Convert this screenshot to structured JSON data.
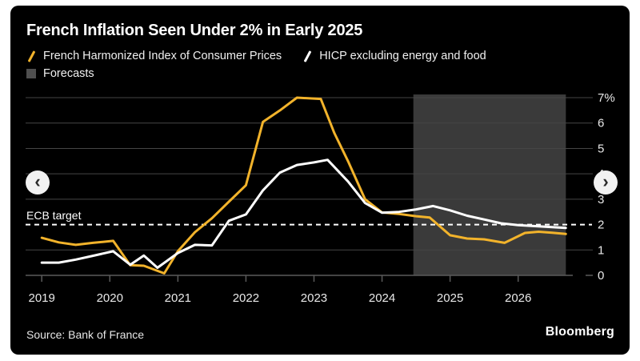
{
  "header": {
    "title": "French Inflation Seen Under 2% in Early 2025"
  },
  "legend": {
    "series1_label": "French Harmonized Index of Consumer Prices",
    "series2_label": "HICP excluding energy and food",
    "forecast_label": "Forecasts"
  },
  "annotations": {
    "ecb_target": "ECB target"
  },
  "nav": {
    "prev_icon": "‹",
    "next_icon": "›"
  },
  "footer": {
    "source": "Source: Bank of France",
    "brand": "Bloomberg"
  },
  "colors": {
    "background": "#000000",
    "page": "#ffffff",
    "headline": "#F2B32B",
    "core": "#FFFFFF",
    "forecast_band": "#3A3A3A",
    "forecast_marker": "#4F4F4F",
    "grid": "#454545",
    "axis": "#5A5A5A",
    "target_line": "#FFFFFF",
    "label_text": "#E9E9E9"
  },
  "chart_data": {
    "type": "line",
    "title": "French Inflation Seen Under 2% in Early 2025",
    "xlabel": "",
    "ylabel": "percent",
    "ylim": [
      0,
      7
    ],
    "xlim": [
      2019.0,
      2026.7
    ],
    "grid": true,
    "legend_position": "top",
    "target_value": 2,
    "forecast_range": [
      2024.46,
      2026.7
    ],
    "x_ticks": [
      2019,
      2020,
      2021,
      2022,
      2023,
      2024,
      2025,
      2026
    ],
    "y_ticks": [
      {
        "value": 7,
        "label": "7%"
      },
      {
        "value": 6,
        "label": "6"
      },
      {
        "value": 5,
        "label": "5"
      },
      {
        "value": 4,
        "label": "4"
      },
      {
        "value": 3,
        "label": "3"
      },
      {
        "value": 2,
        "label": "2"
      },
      {
        "value": 1,
        "label": "1"
      },
      {
        "value": 0,
        "label": "0"
      }
    ],
    "series": [
      {
        "name": "French Harmonized Index of Consumer Prices",
        "color": "#F2B32B",
        "points": [
          [
            2019.0,
            1.48
          ],
          [
            2019.25,
            1.3
          ],
          [
            2019.5,
            1.2
          ],
          [
            2019.75,
            1.28
          ],
          [
            2020.05,
            1.36
          ],
          [
            2020.3,
            0.4
          ],
          [
            2020.5,
            0.38
          ],
          [
            2020.8,
            0.08
          ],
          [
            2021.0,
            0.95
          ],
          [
            2021.25,
            1.7
          ],
          [
            2021.5,
            2.25
          ],
          [
            2021.75,
            2.9
          ],
          [
            2022.0,
            3.55
          ],
          [
            2022.25,
            6.05
          ],
          [
            2022.5,
            6.5
          ],
          [
            2022.75,
            7.0
          ],
          [
            2023.1,
            6.95
          ],
          [
            2023.3,
            5.6
          ],
          [
            2023.5,
            4.5
          ],
          [
            2023.75,
            3.0
          ],
          [
            2024.0,
            2.48
          ],
          [
            2024.25,
            2.42
          ],
          [
            2024.5,
            2.33
          ],
          [
            2024.7,
            2.28
          ],
          [
            2025.0,
            1.58
          ],
          [
            2025.25,
            1.45
          ],
          [
            2025.5,
            1.42
          ],
          [
            2025.8,
            1.28
          ],
          [
            2026.1,
            1.67
          ],
          [
            2026.3,
            1.72
          ],
          [
            2026.5,
            1.68
          ],
          [
            2026.7,
            1.63
          ]
        ]
      },
      {
        "name": "HICP excluding energy and food",
        "color": "#FFFFFF",
        "points": [
          [
            2019.0,
            0.5
          ],
          [
            2019.25,
            0.5
          ],
          [
            2019.5,
            0.62
          ],
          [
            2019.75,
            0.77
          ],
          [
            2020.05,
            0.95
          ],
          [
            2020.3,
            0.42
          ],
          [
            2020.5,
            0.78
          ],
          [
            2020.7,
            0.3
          ],
          [
            2021.0,
            0.88
          ],
          [
            2021.25,
            1.2
          ],
          [
            2021.5,
            1.18
          ],
          [
            2021.75,
            2.15
          ],
          [
            2022.0,
            2.4
          ],
          [
            2022.25,
            3.35
          ],
          [
            2022.5,
            4.05
          ],
          [
            2022.75,
            4.35
          ],
          [
            2023.0,
            4.45
          ],
          [
            2023.2,
            4.55
          ],
          [
            2023.5,
            3.7
          ],
          [
            2023.75,
            2.85
          ],
          [
            2024.0,
            2.47
          ],
          [
            2024.25,
            2.5
          ],
          [
            2024.5,
            2.6
          ],
          [
            2024.75,
            2.73
          ],
          [
            2025.0,
            2.56
          ],
          [
            2025.25,
            2.35
          ],
          [
            2025.5,
            2.2
          ],
          [
            2025.75,
            2.05
          ],
          [
            2026.0,
            1.98
          ],
          [
            2026.25,
            1.94
          ],
          [
            2026.5,
            1.9
          ],
          [
            2026.7,
            1.87
          ]
        ]
      }
    ]
  }
}
